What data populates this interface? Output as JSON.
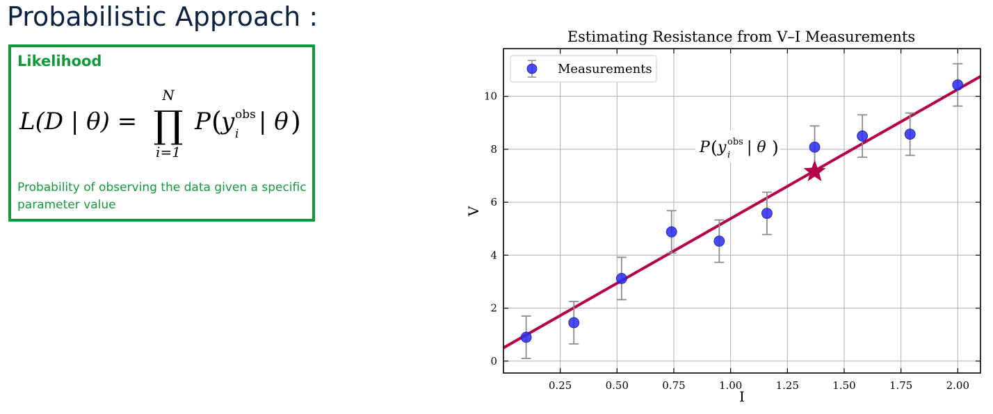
{
  "slide": {
    "title": "Probabilistic Approach :"
  },
  "likelihood_box": {
    "heading": "Likelihood",
    "formula": {
      "lhs": "L(D | θ) =",
      "operator": "∏",
      "upper": "N",
      "lower": "i=1",
      "term_p": "P",
      "term_y": "y",
      "term_sup": "obs",
      "term_sub": "i",
      "term_given": "| θ",
      "open_paren": "(",
      "close_paren": ")"
    },
    "description": "Probability of observing the data given a specific parameter value"
  },
  "colors": {
    "title_navy": "#0d2240",
    "box_green": "#129a3a",
    "fit_line": "#b5004a",
    "points": "#2a2af0",
    "errorbars": "#8c8c8c",
    "grid": "#b0b0b0"
  },
  "chart_data": {
    "type": "scatter",
    "title": "Estimating Resistance from V–I Measurements",
    "xlabel": "I",
    "ylabel": "V",
    "xlim": [
      0.0,
      2.1
    ],
    "ylim": [
      -0.45,
      11.8
    ],
    "xticks": [
      0.25,
      0.5,
      0.75,
      1.0,
      1.25,
      1.5,
      1.75,
      2.0
    ],
    "xtick_labels": [
      "0.25",
      "0.50",
      "0.75",
      "1.00",
      "1.25",
      "1.50",
      "1.75",
      "2.00"
    ],
    "yticks": [
      0,
      2,
      4,
      6,
      8,
      10
    ],
    "ytick_labels": [
      "0",
      "2",
      "4",
      "6",
      "8",
      "10"
    ],
    "grid": true,
    "legend": {
      "position": "top-left",
      "entries": [
        "Measurements"
      ]
    },
    "series": [
      {
        "name": "Measurements",
        "x": [
          0.1,
          0.31,
          0.52,
          0.74,
          0.95,
          1.16,
          1.37,
          1.58,
          1.79,
          2.0
        ],
        "y": [
          0.9,
          1.45,
          3.12,
          4.88,
          4.53,
          5.58,
          8.08,
          8.5,
          8.57,
          10.43
        ],
        "yerr": 0.8
      }
    ],
    "fit_line": {
      "x": [
        0.0,
        2.1
      ],
      "y": [
        0.5,
        10.75
      ]
    },
    "highlight_point": {
      "x": 1.37,
      "y": 7.15,
      "marker": "star"
    },
    "annotation": {
      "p": "P",
      "y": "y",
      "sup": "obs",
      "sub": "i",
      "given": "| θ",
      "open_paren": "(",
      "close_paren": ")"
    }
  }
}
